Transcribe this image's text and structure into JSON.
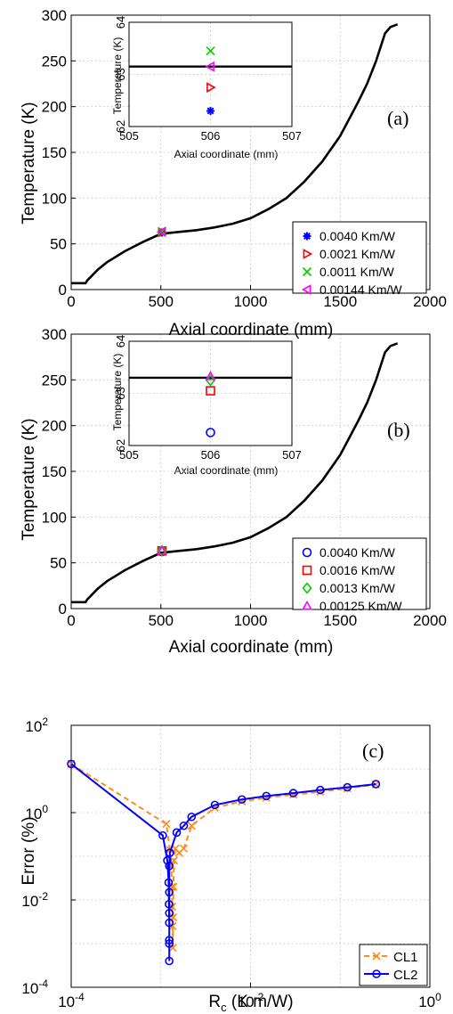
{
  "chart_data": [
    {
      "type": "line",
      "panel_label": "(a)",
      "xlabel": "Axial coordinate (mm)",
      "ylabel": "Temperature (K)",
      "xlim": [
        0,
        2000
      ],
      "ylim": [
        0,
        300
      ],
      "xticks": [
        0,
        500,
        1000,
        1500,
        2000
      ],
      "yticks": [
        0,
        50,
        100,
        150,
        200,
        250,
        300
      ],
      "grid": true,
      "legend_position": "bottom-right",
      "curve": {
        "x": [
          0,
          80,
          90,
          150,
          200,
          300,
          400,
          500,
          600,
          700,
          800,
          900,
          1000,
          1100,
          1200,
          1300,
          1400,
          1500,
          1600,
          1650,
          1700,
          1750,
          1780,
          1820
        ],
        "y": [
          7,
          7,
          10,
          22,
          30,
          42,
          52,
          61,
          63,
          65,
          68,
          72,
          78,
          88,
          100,
          118,
          140,
          168,
          205,
          225,
          250,
          280,
          287,
          290
        ]
      },
      "series": [
        {
          "name": "0.0040 Km/W",
          "marker": "asterisk",
          "color": "#0000ff",
          "x": 506,
          "y": 62.3
        },
        {
          "name": "0.0021 Km/W",
          "marker": "triangle-right",
          "color": "#ff0000",
          "x": 506,
          "y": 62.75
        },
        {
          "name": "0.0011 Km/W",
          "marker": "x",
          "color": "#00cc00",
          "x": 506,
          "y": 63.45
        },
        {
          "name": "0.00144 Km/W",
          "marker": "triangle-left",
          "color": "#ff00ff",
          "x": 506,
          "y": 63.15
        }
      ],
      "inset": {
        "xlabel": "Axial coordinate (mm)",
        "ylabel": "Temperature (K)",
        "xlim": [
          505,
          507
        ],
        "ylim": [
          62,
          64
        ],
        "xticks": [
          505,
          506,
          507
        ],
        "yticks": [
          62,
          63,
          64
        ],
        "line_y": 63.15
      }
    },
    {
      "type": "line",
      "panel_label": "(b)",
      "xlabel": "Axial coordinate (mm)",
      "ylabel": "Temperature (K)",
      "xlim": [
        0,
        2000
      ],
      "ylim": [
        0,
        300
      ],
      "xticks": [
        0,
        500,
        1000,
        1500,
        2000
      ],
      "yticks": [
        0,
        50,
        100,
        150,
        200,
        250,
        300
      ],
      "grid": true,
      "legend_position": "bottom-right",
      "curve": {
        "x": [
          0,
          80,
          90,
          150,
          200,
          300,
          400,
          500,
          600,
          700,
          800,
          900,
          1000,
          1100,
          1200,
          1300,
          1400,
          1500,
          1600,
          1650,
          1700,
          1750,
          1780,
          1820
        ],
        "y": [
          7,
          7,
          10,
          22,
          30,
          42,
          52,
          61,
          63,
          65,
          68,
          72,
          78,
          88,
          100,
          118,
          140,
          168,
          205,
          225,
          250,
          280,
          287,
          290
        ]
      },
      "series": [
        {
          "name": "0.0040 Km/W",
          "marker": "circle",
          "color": "#0000ff",
          "x": 506,
          "y": 62.25
        },
        {
          "name": "0.0016 Km/W",
          "marker": "square",
          "color": "#ff0000",
          "x": 506,
          "y": 63.05
        },
        {
          "name": "0.0013 Km/W",
          "marker": "diamond",
          "color": "#00cc00",
          "x": 506,
          "y": 63.25
        },
        {
          "name": "0.00125 Km/W",
          "marker": "triangle-up",
          "color": "#ff00ff",
          "x": 506,
          "y": 63.33
        }
      ],
      "inset": {
        "xlabel": "Axial coordinate (mm)",
        "ylabel": "Temperature (K)",
        "xlim": [
          505,
          507
        ],
        "ylim": [
          62,
          64
        ],
        "xticks": [
          505,
          506,
          507
        ],
        "yticks": [
          62,
          63,
          64
        ],
        "line_y": 63.3
      }
    },
    {
      "type": "line",
      "panel_label": "(c)",
      "xlabel": "R_c (K m/W)",
      "ylabel": "Error (%)",
      "xscale": "log",
      "yscale": "log",
      "xlim": [
        0.0001,
        1
      ],
      "ylim": [
        0.0001,
        100
      ],
      "xtick_exponents": [
        -4,
        -2,
        0
      ],
      "ytick_exponents": [
        -4,
        -2,
        0,
        2
      ],
      "grid": true,
      "legend_position": "bottom-right",
      "series": [
        {
          "name": "CL1",
          "color": "#ff8c1a",
          "marker": "x",
          "linestyle": "dashed",
          "x": [
            0.0001,
            0.00115,
            0.00126,
            0.00131,
            0.00133,
            0.00134,
            0.00135,
            0.00136,
            0.00137,
            0.00138,
            0.0014,
            0.00145,
            0.0016,
            0.0018,
            0.0022,
            0.004,
            0.008,
            0.015,
            0.03,
            0.06,
            0.12,
            0.25
          ],
          "y": [
            13,
            0.55,
            0.14,
            0.06,
            0.02,
            0.007,
            0.0025,
            0.0008,
            0.004,
            0.02,
            0.08,
            0.15,
            0.12,
            0.15,
            0.5,
            1.3,
            1.8,
            2.2,
            2.6,
            3.0,
            3.6,
            4.4
          ]
        },
        {
          "name": "CL2",
          "color": "#0000ff",
          "marker": "circle",
          "linestyle": "solid",
          "x": [
            0.0001,
            0.00105,
            0.00118,
            0.00122,
            0.00123,
            0.00124,
            0.00124,
            0.00124,
            0.00124,
            0.00124,
            0.00124,
            0.00124,
            0.00126,
            0.0015,
            0.0018,
            0.0022,
            0.004,
            0.008,
            0.015,
            0.03,
            0.06,
            0.12,
            0.25
          ],
          "y": [
            13,
            0.3,
            0.08,
            0.025,
            0.008,
            0.003,
            0.001,
            0.0004,
            0.0012,
            0.005,
            0.015,
            0.06,
            0.12,
            0.35,
            0.5,
            0.8,
            1.5,
            2.0,
            2.4,
            2.8,
            3.3,
            3.8,
            4.5
          ]
        }
      ]
    }
  ]
}
